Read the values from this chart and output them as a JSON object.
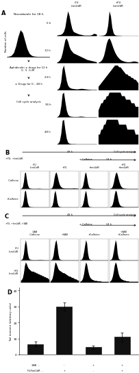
{
  "bg_color": "#ffffff",
  "panel_A": {
    "label": "A",
    "col_headers": [
      "-FU\n-hmUdR",
      "+FU\n-hmUdR"
    ],
    "row_labels": [
      "0 h",
      "12 h",
      "24 h",
      "36 h",
      "48 h"
    ],
    "histograms": [
      [
        [
          0.02,
          0.03,
          0.04,
          0.05,
          0.08,
          0.15,
          0.3,
          0.6,
          0.85,
          0.7,
          0.45,
          0.25,
          0.15,
          0.12,
          0.1,
          0.08,
          0.06,
          0.05,
          0.04,
          0.03,
          0.02,
          0.02,
          0.02,
          0.02,
          0.02,
          0.03,
          0.05,
          0.08,
          0.07,
          0.05
        ],
        [
          0.02,
          0.03,
          0.04,
          0.06,
          0.1,
          0.2,
          0.5,
          1.5,
          3.5,
          2.8,
          1.2,
          0.4,
          0.15,
          0.08,
          0.06,
          0.05,
          0.04,
          0.03,
          0.02,
          0.02,
          0.02,
          0.02,
          0.02,
          0.02,
          0.02,
          0.02,
          0.02,
          0.02,
          0.02,
          0.02
        ]
      ],
      [
        [
          0.02,
          0.04,
          0.08,
          0.15,
          0.3,
          0.5,
          0.7,
          0.75,
          0.65,
          0.5,
          0.4,
          0.35,
          0.3,
          0.28,
          0.26,
          0.24,
          0.22,
          0.2,
          0.18,
          0.16,
          0.14,
          0.12,
          0.1,
          0.09,
          0.08,
          0.07,
          0.06,
          0.05,
          0.04,
          0.03
        ],
        [
          0.02,
          0.04,
          0.08,
          0.15,
          0.28,
          0.5,
          0.75,
          0.9,
          0.95,
          0.85,
          0.7,
          0.55,
          0.42,
          0.32,
          0.24,
          0.18,
          0.13,
          0.1,
          0.08,
          0.06,
          0.05,
          0.04,
          0.04,
          0.04,
          0.05,
          0.06,
          0.07,
          0.06,
          0.05,
          0.03
        ]
      ],
      [
        [
          0.02,
          0.05,
          0.15,
          0.45,
          1.1,
          1.3,
          0.9,
          0.5,
          0.25,
          0.15,
          0.1,
          0.08,
          0.07,
          0.06,
          0.05,
          0.05,
          0.06,
          0.07,
          0.08,
          0.07,
          0.06,
          0.05,
          0.04,
          0.03,
          0.03,
          0.02,
          0.02,
          0.02,
          0.02,
          0.02
        ],
        [
          0.02,
          0.03,
          0.04,
          0.05,
          0.06,
          0.07,
          0.08,
          0.09,
          0.1,
          0.11,
          0.12,
          0.13,
          0.14,
          0.14,
          0.14,
          0.13,
          0.13,
          0.12,
          0.11,
          0.1,
          0.09,
          0.09,
          0.08,
          0.08,
          0.07,
          0.07,
          0.06,
          0.06,
          0.05,
          0.04
        ]
      ],
      [
        [
          0.02,
          0.06,
          0.2,
          0.7,
          1.5,
          1.6,
          1.0,
          0.45,
          0.18,
          0.08,
          0.05,
          0.04,
          0.03,
          0.03,
          0.03,
          0.03,
          0.04,
          0.05,
          0.05,
          0.04,
          0.03,
          0.02,
          0.02,
          0.02,
          0.02,
          0.02,
          0.02,
          0.02,
          0.02,
          0.02
        ],
        [
          0.02,
          0.03,
          0.04,
          0.04,
          0.05,
          0.05,
          0.06,
          0.06,
          0.07,
          0.07,
          0.07,
          0.07,
          0.07,
          0.07,
          0.07,
          0.07,
          0.07,
          0.06,
          0.06,
          0.06,
          0.05,
          0.05,
          0.05,
          0.05,
          0.04,
          0.04,
          0.04,
          0.03,
          0.03,
          0.03
        ]
      ],
      [
        [
          0.02,
          0.07,
          0.25,
          0.8,
          1.8,
          1.9,
          1.1,
          0.45,
          0.15,
          0.06,
          0.04,
          0.03,
          0.03,
          0.03,
          0.02,
          0.02,
          0.02,
          0.02,
          0.02,
          0.02,
          0.02,
          0.02,
          0.02,
          0.02,
          0.02,
          0.02,
          0.02,
          0.02,
          0.02,
          0.02
        ],
        [
          0.02,
          0.02,
          0.03,
          0.03,
          0.04,
          0.04,
          0.05,
          0.05,
          0.05,
          0.05,
          0.05,
          0.05,
          0.05,
          0.05,
          0.05,
          0.04,
          0.04,
          0.04,
          0.04,
          0.04,
          0.04,
          0.03,
          0.03,
          0.03,
          0.03,
          0.03,
          0.03,
          0.02,
          0.02,
          0.02
        ]
      ]
    ]
  },
  "panel_B": {
    "label": "B",
    "col_headers": [
      "-FU\n-hmUdR",
      "+FU",
      "+hmUdR",
      "+FU\n+hmUdR"
    ],
    "row_labels": [
      "-Caffeine",
      "+Caffeine"
    ],
    "histograms": [
      [
        [
          0.02,
          0.06,
          0.2,
          0.65,
          1.4,
          1.5,
          0.9,
          0.4,
          0.15,
          0.07,
          0.05,
          0.04,
          0.03,
          0.03,
          0.03,
          0.03,
          0.03,
          0.04,
          0.04,
          0.04,
          0.03,
          0.03,
          0.02,
          0.02,
          0.02,
          0.02,
          0.02,
          0.02,
          0.02,
          0.02
        ],
        [
          0.02,
          0.04,
          0.1,
          0.3,
          0.7,
          1.0,
          1.1,
          0.9,
          0.6,
          0.35,
          0.2,
          0.12,
          0.08,
          0.06,
          0.05,
          0.04,
          0.04,
          0.04,
          0.04,
          0.04,
          0.04,
          0.04,
          0.04,
          0.05,
          0.05,
          0.05,
          0.04,
          0.04,
          0.03,
          0.02
        ],
        [
          0.02,
          0.04,
          0.1,
          0.3,
          0.8,
          1.4,
          1.6,
          1.1,
          0.5,
          0.18,
          0.08,
          0.05,
          0.04,
          0.03,
          0.03,
          0.02,
          0.02,
          0.02,
          0.02,
          0.02,
          0.02,
          0.02,
          0.02,
          0.02,
          0.02,
          0.02,
          0.02,
          0.02,
          0.02,
          0.02
        ],
        [
          0.02,
          0.03,
          0.06,
          0.15,
          0.35,
          0.65,
          0.9,
          1.0,
          0.85,
          0.6,
          0.38,
          0.22,
          0.12,
          0.07,
          0.05,
          0.04,
          0.03,
          0.03,
          0.02,
          0.02,
          0.02,
          0.02,
          0.02,
          0.02,
          0.02,
          0.02,
          0.02,
          0.02,
          0.02,
          0.02
        ]
      ],
      [
        [
          0.02,
          0.06,
          0.22,
          0.7,
          1.5,
          1.6,
          1.0,
          0.42,
          0.15,
          0.06,
          0.04,
          0.03,
          0.03,
          0.02,
          0.02,
          0.02,
          0.02,
          0.02,
          0.02,
          0.02,
          0.02,
          0.02,
          0.02,
          0.02,
          0.02,
          0.02,
          0.02,
          0.02,
          0.02,
          0.02
        ],
        [
          0.02,
          0.05,
          0.18,
          0.6,
          1.4,
          1.7,
          1.2,
          0.5,
          0.17,
          0.07,
          0.04,
          0.03,
          0.02,
          0.02,
          0.02,
          0.02,
          0.02,
          0.02,
          0.02,
          0.02,
          0.02,
          0.02,
          0.02,
          0.02,
          0.02,
          0.02,
          0.02,
          0.02,
          0.02,
          0.02
        ],
        [
          0.02,
          0.04,
          0.12,
          0.4,
          1.0,
          1.8,
          2.2,
          1.5,
          0.5,
          0.15,
          0.06,
          0.04,
          0.03,
          0.02,
          0.02,
          0.02,
          0.02,
          0.02,
          0.02,
          0.02,
          0.02,
          0.02,
          0.02,
          0.02,
          0.02,
          0.02,
          0.02,
          0.02,
          0.02,
          0.02
        ],
        [
          0.02,
          0.03,
          0.06,
          0.15,
          0.35,
          0.65,
          0.85,
          0.8,
          0.55,
          0.3,
          0.15,
          0.08,
          0.05,
          0.04,
          0.03,
          0.02,
          0.02,
          0.02,
          0.02,
          0.02,
          0.02,
          0.02,
          0.02,
          0.02,
          0.02,
          0.02,
          0.02,
          0.02,
          0.02,
          0.02
        ]
      ]
    ]
  },
  "panel_C": {
    "label": "C",
    "col_headers": [
      "-3AB\n-Caffeine",
      "+3AB",
      "+Caffeine",
      "+3AB\n+Caffeine"
    ],
    "row_labels": [
      "-FU\n-hmUdR",
      "+FU\n-hmUdR"
    ],
    "histograms": [
      [
        [
          0.02,
          0.05,
          0.15,
          0.5,
          1.2,
          1.6,
          1.2,
          0.55,
          0.2,
          0.08,
          0.05,
          0.04,
          0.03,
          0.03,
          0.03,
          0.03,
          0.03,
          0.03,
          0.04,
          0.04,
          0.04,
          0.04,
          0.03,
          0.03,
          0.03,
          0.02,
          0.02,
          0.02,
          0.02,
          0.02
        ],
        [
          0.02,
          0.04,
          0.12,
          0.4,
          1.0,
          1.5,
          1.7,
          1.2,
          0.5,
          0.15,
          0.06,
          0.04,
          0.03,
          0.02,
          0.02,
          0.02,
          0.02,
          0.02,
          0.02,
          0.02,
          0.02,
          0.02,
          0.02,
          0.02,
          0.02,
          0.02,
          0.02,
          0.02,
          0.02,
          0.02
        ],
        [
          0.02,
          0.04,
          0.1,
          0.3,
          0.75,
          1.3,
          1.8,
          1.5,
          0.6,
          0.18,
          0.07,
          0.04,
          0.03,
          0.02,
          0.02,
          0.02,
          0.02,
          0.02,
          0.02,
          0.02,
          0.02,
          0.02,
          0.02,
          0.02,
          0.02,
          0.02,
          0.02,
          0.02,
          0.02,
          0.02
        ],
        [
          0.02,
          0.04,
          0.1,
          0.3,
          0.75,
          1.3,
          1.8,
          1.5,
          0.6,
          0.18,
          0.07,
          0.04,
          0.03,
          0.02,
          0.02,
          0.02,
          0.02,
          0.02,
          0.02,
          0.02,
          0.02,
          0.02,
          0.02,
          0.02,
          0.02,
          0.02,
          0.02,
          0.02,
          0.02,
          0.02
        ]
      ],
      [
        [
          0.02,
          0.03,
          0.05,
          0.1,
          0.18,
          0.22,
          0.2,
          0.17,
          0.15,
          0.14,
          0.13,
          0.12,
          0.12,
          0.12,
          0.11,
          0.11,
          0.1,
          0.1,
          0.09,
          0.09,
          0.08,
          0.08,
          0.07,
          0.07,
          0.06,
          0.06,
          0.05,
          0.05,
          0.04,
          0.03
        ],
        [
          0.02,
          0.03,
          0.06,
          0.12,
          0.22,
          0.3,
          0.28,
          0.24,
          0.2,
          0.18,
          0.17,
          0.16,
          0.15,
          0.14,
          0.14,
          0.13,
          0.12,
          0.11,
          0.1,
          0.09,
          0.09,
          0.08,
          0.07,
          0.07,
          0.06,
          0.05,
          0.05,
          0.04,
          0.03,
          0.03
        ],
        [
          0.02,
          0.03,
          0.05,
          0.1,
          0.2,
          0.35,
          0.45,
          0.4,
          0.28,
          0.18,
          0.12,
          0.09,
          0.07,
          0.06,
          0.05,
          0.04,
          0.04,
          0.04,
          0.03,
          0.03,
          0.03,
          0.03,
          0.02,
          0.02,
          0.02,
          0.02,
          0.02,
          0.02,
          0.02,
          0.02
        ],
        [
          0.02,
          0.03,
          0.06,
          0.12,
          0.22,
          0.35,
          0.42,
          0.38,
          0.28,
          0.18,
          0.12,
          0.09,
          0.07,
          0.06,
          0.05,
          0.04,
          0.04,
          0.03,
          0.03,
          0.03,
          0.02,
          0.02,
          0.02,
          0.02,
          0.02,
          0.02,
          0.02,
          0.02,
          0.02,
          0.02
        ]
      ]
    ]
  },
  "panel_D": {
    "label": "D",
    "ylabel": "Tail moment (arbitrary units)",
    "ylim": [
      0,
      42
    ],
    "yticks": [
      0,
      10,
      20,
      30,
      40
    ],
    "bar_values": [
      6.5,
      30.0,
      4.5,
      11.0
    ],
    "bar_errors": [
      1.5,
      2.5,
      1.2,
      2.8
    ],
    "bar_colors": [
      "#111111",
      "#111111",
      "#111111",
      "#111111"
    ],
    "xtick_labels_top": [
      "3AB   -",
      "-",
      "+",
      "+"
    ],
    "xtick_labels_bot": [
      "FU/hmUdR   -",
      "+",
      "-",
      "+"
    ]
  }
}
